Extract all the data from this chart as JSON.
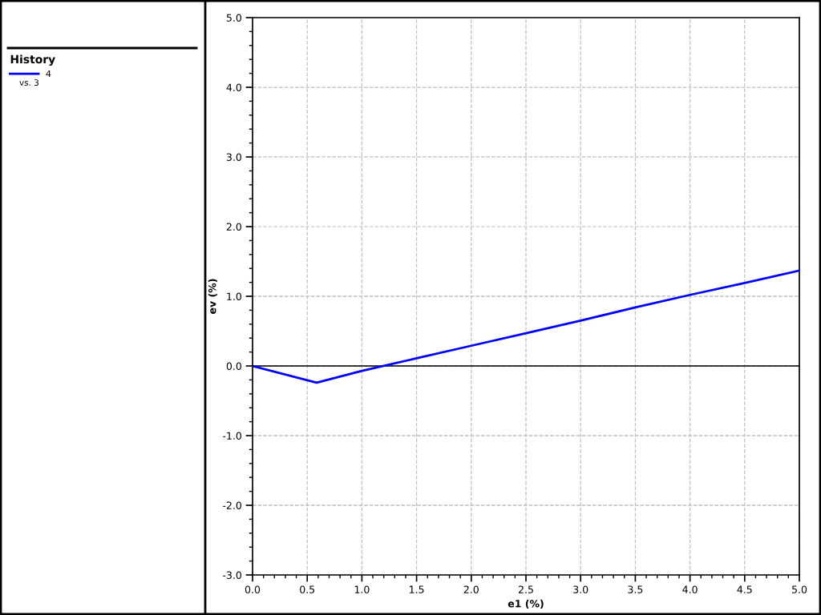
{
  "chart_data": {
    "type": "line",
    "xlabel": "e1 (%)",
    "ylabel": "ev (%)",
    "legend_title": "History",
    "annotations": [
      "vs. 3"
    ],
    "x": [
      0.0,
      0.586,
      1.0,
      1.5,
      2.0,
      2.5,
      3.0,
      3.5,
      4.0,
      4.5,
      5.0
    ],
    "series": [
      {
        "name": "4",
        "color": "#0000ff",
        "values": [
          0.0,
          -0.24,
          -0.07,
          0.11,
          0.29,
          0.47,
          0.65,
          0.84,
          1.02,
          1.19,
          1.37
        ]
      }
    ],
    "xlim": [
      0,
      5
    ],
    "ylim": [
      -3,
      5
    ],
    "xticks": [
      {
        "value": 0,
        "label": "0.0"
      },
      {
        "value": 0.5,
        "label": "0.5"
      },
      {
        "value": 1,
        "label": "1.0"
      },
      {
        "value": 1.5,
        "label": "1.5"
      },
      {
        "value": 2,
        "label": "2.0"
      },
      {
        "value": 2.5,
        "label": "2.5"
      },
      {
        "value": 3,
        "label": "3.0"
      },
      {
        "value": 3.5,
        "label": "3.5"
      },
      {
        "value": 4,
        "label": "4.0"
      },
      {
        "value": 4.5,
        "label": "4.5"
      },
      {
        "value": 5,
        "label": "5.0"
      }
    ],
    "yticks": [
      {
        "value": -3,
        "label": "-3.0"
      },
      {
        "value": -2,
        "label": "-2.0"
      },
      {
        "value": -1,
        "label": "-1.0"
      },
      {
        "value": 0,
        "label": "0.0"
      },
      {
        "value": 1,
        "label": "1.0"
      },
      {
        "value": 2,
        "label": "2.0"
      },
      {
        "value": 3,
        "label": "3.0"
      },
      {
        "value": 4,
        "label": "4.0"
      },
      {
        "value": 5,
        "label": "5.0"
      }
    ],
    "ref_lines": [
      {
        "axis": "y",
        "value": 0,
        "color": "#000000"
      }
    ],
    "grid": true,
    "legend": "left",
    "marker": "none",
    "line_style": "solid"
  }
}
